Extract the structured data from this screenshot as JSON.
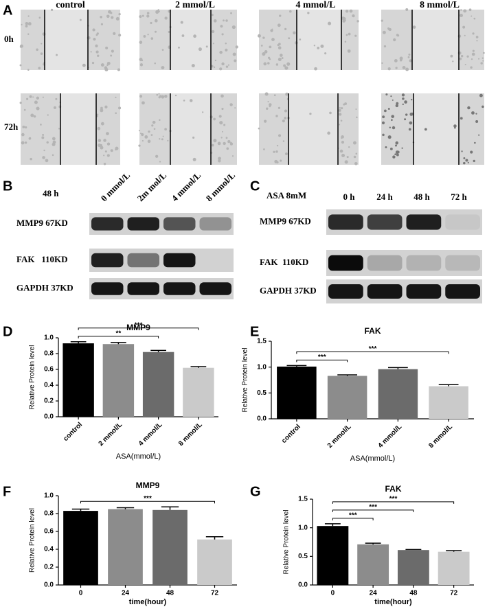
{
  "panel_labels": [
    "A",
    "B",
    "C",
    "D",
    "E",
    "F",
    "G"
  ],
  "wound": {
    "columns": [
      "control",
      "2 mmol/L",
      "4 mmol/L",
      "8 mmol/L"
    ],
    "rows": [
      "0h",
      "72h"
    ]
  },
  "blot_b": {
    "condition": "48 h",
    "lanes": [
      "0 mmol/L",
      "2m mol/L",
      "4 mmol/L",
      "8 mmol/L"
    ],
    "rows": [
      "MMP9 67KD",
      "FAK   110KD",
      "GAPDH 37KD"
    ]
  },
  "blot_c": {
    "condition": "ASA 8mM",
    "lanes": [
      "0 h",
      "24 h",
      "48 h",
      "72 h"
    ],
    "rows": [
      "MMP9 67KD",
      "FAK  110KD",
      "GAPDH 37KD"
    ]
  },
  "chart_data": [
    {
      "type": "bar",
      "title": "MMP9",
      "categories": [
        "control",
        "2 mmol/L",
        "4 mmol/L",
        "8 mmol/L"
      ],
      "values": [
        0.93,
        0.92,
        0.82,
        0.62
      ],
      "errors": [
        0.02,
        0.02,
        0.02,
        0.015
      ],
      "colors": [
        "#000000",
        "#8c8c8c",
        "#6b6b6b",
        "#cacaca"
      ],
      "ylabel": "Relative Protein level",
      "xlabel": "ASA(mmol/L)",
      "rotated_xticks": true,
      "ylim": [
        0,
        1.0
      ],
      "yticks": [
        {
          "value": 0,
          "label": "0.0"
        },
        0.2,
        0.4,
        0.6,
        0.8,
        {
          "value": 1.0,
          "label": "1.0"
        }
      ],
      "significance": [
        {
          "label": "**",
          "from": 0,
          "to": 2
        },
        {
          "label": "***",
          "from": 0,
          "to": 3
        }
      ]
    },
    {
      "type": "bar",
      "title": "FAK",
      "categories": [
        "control",
        "2 mmol/L",
        "4 mmol/L",
        "8 mmol/L"
      ],
      "values": [
        1.01,
        0.83,
        0.96,
        0.63
      ],
      "errors": [
        0.02,
        0.02,
        0.03,
        0.03
      ],
      "colors": [
        "#000000",
        "#8c8c8c",
        "#6b6b6b",
        "#cacaca"
      ],
      "ylabel": "Relative Protein level",
      "xlabel": "ASA(mmol/L)",
      "rotated_xticks": true,
      "ylim": [
        0,
        1.5
      ],
      "yticks": [
        {
          "value": 0,
          "label": "0.0"
        },
        0.5,
        {
          "value": 1.0,
          "label": "1.0"
        },
        1.5
      ],
      "significance": [
        {
          "label": "***",
          "from": 0,
          "to": 1
        },
        {
          "label": "***",
          "from": 0,
          "to": 3
        }
      ]
    },
    {
      "type": "bar",
      "title": "MMP9",
      "categories": [
        "0",
        "24",
        "48",
        "72"
      ],
      "values": [
        0.83,
        0.85,
        0.84,
        0.51
      ],
      "errors": [
        0.02,
        0.015,
        0.035,
        0.03
      ],
      "colors": [
        "#000000",
        "#8c8c8c",
        "#6b6b6b",
        "#cacaca"
      ],
      "ylabel": "Relative Protein level",
      "xlabel": "time(hour)",
      "rotated_xticks": false,
      "ylim": [
        0,
        1.0
      ],
      "yticks": [
        {
          "value": 0,
          "label": "0.0"
        },
        0.2,
        0.4,
        0.6,
        0.8,
        {
          "value": 1.0,
          "label": "1.0"
        }
      ],
      "significance": [
        {
          "label": "***",
          "from": 0,
          "to": 3
        }
      ]
    },
    {
      "type": "bar",
      "title": "FAK",
      "categories": [
        "0",
        "24",
        "48",
        "72"
      ],
      "values": [
        1.03,
        0.71,
        0.61,
        0.58
      ],
      "errors": [
        0.04,
        0.02,
        0.01,
        0.02
      ],
      "colors": [
        "#000000",
        "#8c8c8c",
        "#6b6b6b",
        "#cacaca"
      ],
      "ylabel": "Relative Protein level",
      "xlabel": "time(hour)",
      "rotated_xticks": false,
      "ylim": [
        0,
        1.5
      ],
      "yticks": [
        {
          "value": 0,
          "label": "0.0"
        },
        0.5,
        {
          "value": 1.0,
          "label": "1.0"
        },
        1.5
      ],
      "significance": [
        {
          "label": "***",
          "from": 0,
          "to": 1
        },
        {
          "label": "***",
          "from": 0,
          "to": 2
        },
        {
          "label": "***",
          "from": 0,
          "to": 3
        }
      ]
    }
  ]
}
